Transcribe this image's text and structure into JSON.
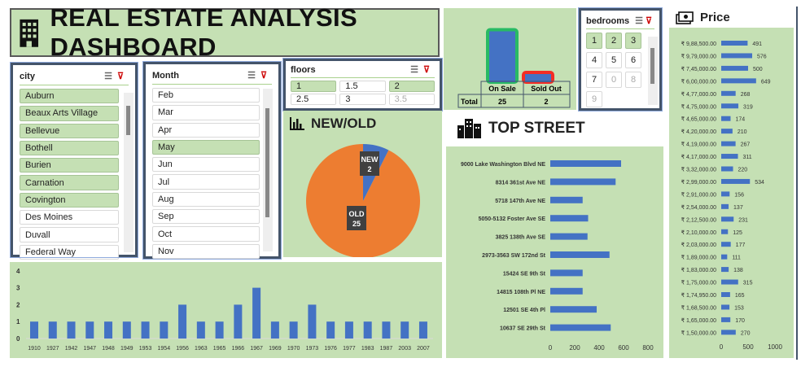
{
  "title": "REAL ESTATE ANALYSIS DASHBOARD",
  "slicers": {
    "city": {
      "label": "city",
      "items": [
        {
          "label": "Auburn",
          "selected": true
        },
        {
          "label": "Beaux Arts Village",
          "selected": true
        },
        {
          "label": "Bellevue",
          "selected": true
        },
        {
          "label": "Bothell",
          "selected": true
        },
        {
          "label": "Burien",
          "selected": true
        },
        {
          "label": "Carnation",
          "selected": true
        },
        {
          "label": "Covington",
          "selected": true
        },
        {
          "label": "Des Moines",
          "selected": false
        },
        {
          "label": "Duvall",
          "selected": false
        },
        {
          "label": "Federal Way",
          "selected": false
        }
      ]
    },
    "month": {
      "label": "Month",
      "items": [
        {
          "label": "Feb",
          "selected": false
        },
        {
          "label": "Mar",
          "selected": false
        },
        {
          "label": "Apr",
          "selected": false
        },
        {
          "label": "May",
          "selected": true
        },
        {
          "label": "Jun",
          "selected": false
        },
        {
          "label": "Jul",
          "selected": false
        },
        {
          "label": "Aug",
          "selected": false
        },
        {
          "label": "Sep",
          "selected": false
        },
        {
          "label": "Oct",
          "selected": false
        },
        {
          "label": "Nov",
          "selected": false
        }
      ]
    },
    "floors": {
      "label": "floors",
      "items": [
        {
          "label": "1",
          "state": "selected"
        },
        {
          "label": "1.5",
          "state": "normal"
        },
        {
          "label": "2",
          "state": "selected"
        },
        {
          "label": "2.5",
          "state": "normal"
        },
        {
          "label": "3",
          "state": "normal"
        },
        {
          "label": "3.5",
          "state": "disabled"
        }
      ]
    },
    "bedrooms": {
      "label": "bedrooms",
      "items": [
        {
          "label": "1",
          "state": "selected"
        },
        {
          "label": "2",
          "state": "selected"
        },
        {
          "label": "3",
          "state": "selected"
        },
        {
          "label": "4",
          "state": "normal"
        },
        {
          "label": "5",
          "state": "normal"
        },
        {
          "label": "6",
          "state": "normal"
        },
        {
          "label": "7",
          "state": "normal"
        },
        {
          "label": "0",
          "state": "disabled"
        },
        {
          "label": "8",
          "state": "disabled"
        },
        {
          "label": "9",
          "state": "disabled"
        }
      ]
    }
  },
  "sections": {
    "new_old": "NEW/OLD",
    "top_street": "TOP STREET",
    "price": "Price"
  },
  "colors": {
    "panel": "#c5e0b4",
    "bar": "#4472c4",
    "old": "#ed7d31",
    "new": "#4472c4"
  },
  "chart_data": [
    {
      "type": "pie",
      "name": "new-old",
      "categories": [
        "NEW",
        "OLD"
      ],
      "values": [
        2,
        25
      ],
      "labels": [
        "NEW",
        "OLD"
      ]
    },
    {
      "type": "bar",
      "name": "sale-status",
      "categories": [
        "On Sale",
        "Sold Out"
      ],
      "values": [
        25,
        2
      ],
      "table": {
        "row_label": "Total",
        "values": [
          "25",
          "2"
        ]
      }
    },
    {
      "type": "bar",
      "orientation": "horizontal",
      "name": "top-street",
      "categories": [
        "9000 Lake Washington Blvd NE",
        "8314 361st Ave NE",
        "5718 147th Ave NE",
        "5050-5132 Foster Ave SE",
        "3825 138th Ave SE",
        "2973-3563 SW 172nd St",
        "15424 SE 9th St",
        "14815 108th Pl NE",
        "12501 SE 4th Pl",
        "10637 SE 29th St"
      ],
      "values": [
        580,
        535,
        265,
        310,
        305,
        485,
        265,
        265,
        380,
        495
      ],
      "xlim": [
        0,
        800
      ],
      "xticks": [
        "0",
        "200",
        "400",
        "600",
        "800"
      ]
    },
    {
      "type": "bar",
      "orientation": "horizontal",
      "name": "price",
      "categories": [
        "₹ 9,88,500.00",
        "₹ 9,79,000.00",
        "₹ 7,45,000.00",
        "₹ 6,00,000.00",
        "₹ 4,77,000.00",
        "₹ 4,75,000.00",
        "₹ 4,65,000.00",
        "₹ 4,20,000.00",
        "₹ 4,19,000.00",
        "₹ 4,17,000.00",
        "₹ 3,32,000.00",
        "₹ 2,99,000.00",
        "₹ 2,91,000.00",
        "₹ 2,54,000.00",
        "₹ 2,12,500.00",
        "₹ 2,10,000.00",
        "₹ 2,03,000.00",
        "₹ 1,89,000.00",
        "₹ 1,83,000.00",
        "₹ 1,75,000.00",
        "₹ 1,74,950.00",
        "₹ 1,68,500.00",
        "₹ 1,65,000.00",
        "₹ 1,50,000.00"
      ],
      "values": [
        491,
        576,
        500,
        649,
        268,
        319,
        174,
        210,
        267,
        311,
        220,
        534,
        156,
        137,
        231,
        125,
        177,
        111,
        138,
        315,
        165,
        153,
        170,
        270
      ],
      "xlim": [
        0,
        1000
      ],
      "xticks": [
        "0",
        "500",
        "1000"
      ]
    },
    {
      "type": "bar",
      "name": "year-built",
      "categories": [
        "1910",
        "1927",
        "1942",
        "1947",
        "1948",
        "1949",
        "1953",
        "1954",
        "1956",
        "1963",
        "1965",
        "1966",
        "1967",
        "1969",
        "1970",
        "1973",
        "1976",
        "1977",
        "1983",
        "1987",
        "2003",
        "2007"
      ],
      "values": [
        1,
        1,
        1,
        1,
        1,
        1,
        1,
        1,
        2,
        1,
        1,
        2,
        3,
        1,
        1,
        2,
        1,
        1,
        1,
        1,
        1,
        1
      ],
      "ylim": [
        0,
        4
      ],
      "yticks": [
        "0",
        "1",
        "2",
        "3",
        "4"
      ]
    }
  ]
}
